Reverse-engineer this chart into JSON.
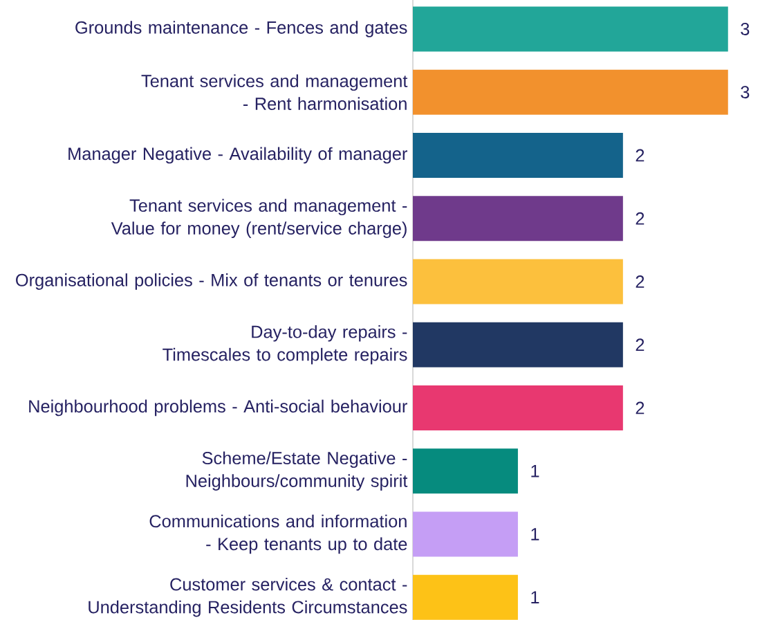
{
  "chart_data": {
    "type": "bar",
    "orientation": "horizontal",
    "data_labels": true,
    "categories": [
      "Grounds maintenance - Fences and gates",
      "Tenant services and management - Rent harmonisation",
      "Manager Negative - Availability of manager",
      "Tenant services and management - Value for money (rent/service charge)",
      "Organisational policies - Mix of tenants or tenures",
      "Day-to-day repairs - Timescales to complete repairs",
      "Neighbourhood problems - Anti-social behaviour",
      "Scheme/Estate Negative - Neighbours/community spirit",
      "Communications and information - Keep tenants up to date",
      "Customer services & contact - Understanding Residents Circumstances"
    ],
    "values": [
      3,
      3,
      2,
      2,
      2,
      2,
      2,
      1,
      1,
      1
    ],
    "colors": [
      "#22a699",
      "#f2912d",
      "#14638b",
      "#6f3a8b",
      "#fcc03d",
      "#213863",
      "#e83870",
      "#068b7e",
      "#c59ef5",
      "#fdc217"
    ]
  }
}
